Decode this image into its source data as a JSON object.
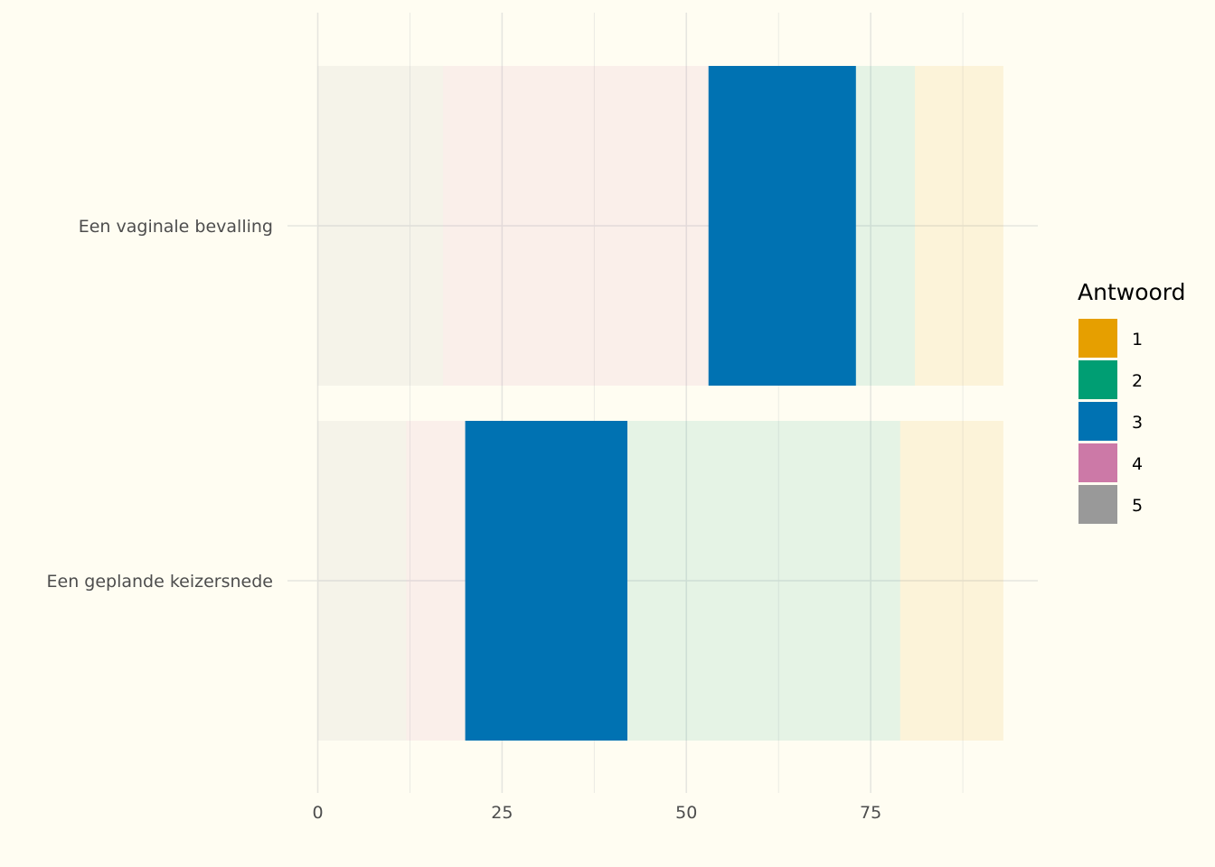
{
  "chart_data": {
    "type": "bar",
    "orientation": "horizontal",
    "stacked": true,
    "categories": [
      "Een vaginale bevalling",
      "Een geplande keizersnede"
    ],
    "series": [
      {
        "name": "5",
        "color": "#999999",
        "values": [
          17,
          12
        ]
      },
      {
        "name": "4",
        "color": "#cc79a7",
        "values": [
          36,
          8
        ]
      },
      {
        "name": "3",
        "color": "#0072b2",
        "values": [
          20,
          22
        ]
      },
      {
        "name": "2",
        "color": "#009e73",
        "values": [
          8,
          37
        ]
      },
      {
        "name": "1",
        "color": "#e69f00",
        "values": [
          12,
          14
        ]
      }
    ],
    "highlighted_series": "3",
    "dimmed_series_opacity": 0.1,
    "x_ticks": [
      0,
      25,
      50,
      75
    ],
    "xlim": [
      0,
      97
    ],
    "xlabel": "",
    "ylabel": "",
    "grid": true,
    "legend": {
      "title": "Antwoord",
      "position": "right",
      "entries": [
        {
          "label": "1",
          "color": "#e69f00"
        },
        {
          "label": "2",
          "color": "#009e73"
        },
        {
          "label": "3",
          "color": "#0072b2"
        },
        {
          "label": "4",
          "color": "#cc79a7"
        },
        {
          "label": "5",
          "color": "#999999"
        }
      ]
    }
  },
  "colors": {
    "background": "#fffdf2",
    "grid": "#e6e6e0",
    "text": "#4d4d4d"
  }
}
